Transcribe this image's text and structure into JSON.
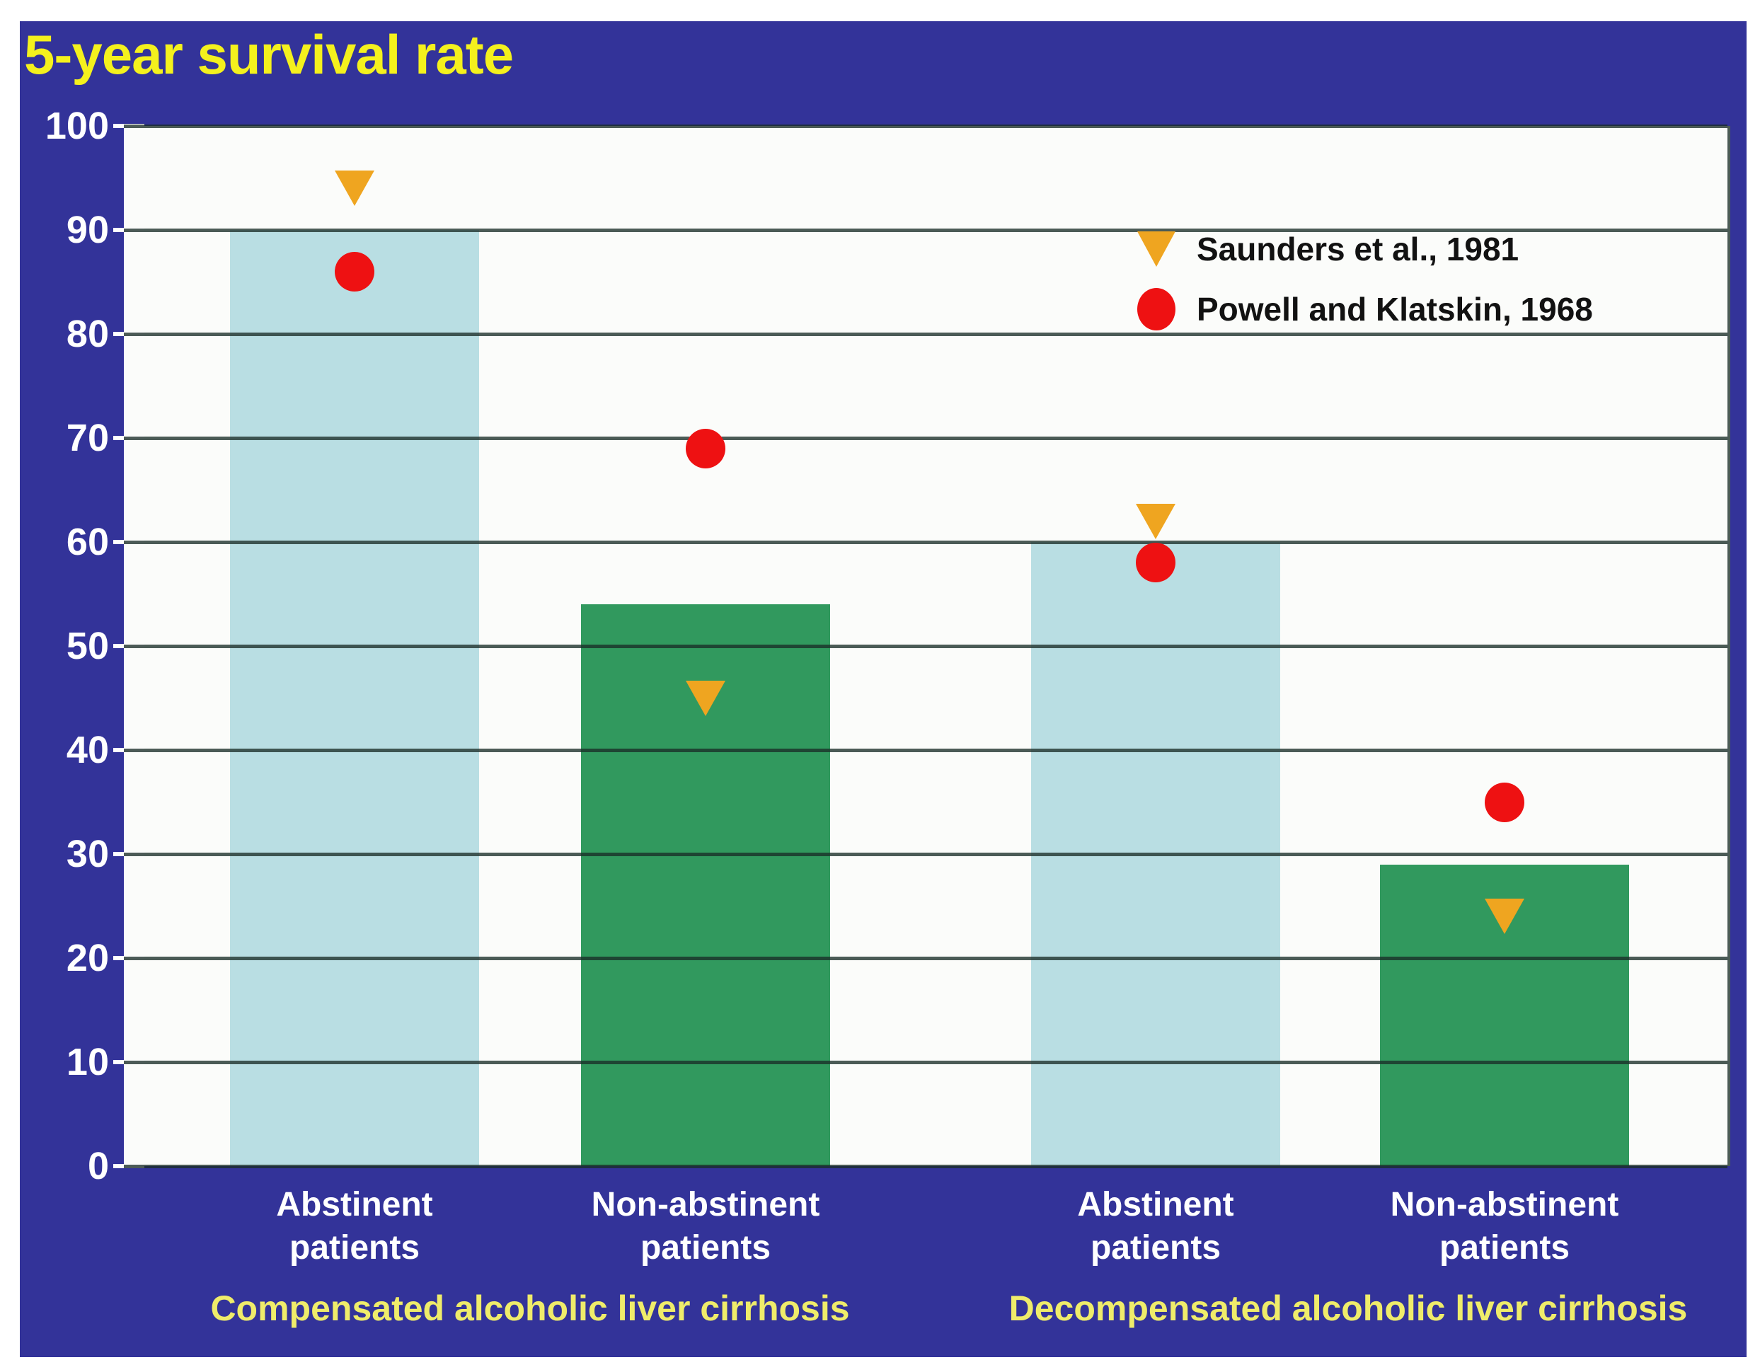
{
  "title": "5-year survival rate",
  "colors": {
    "background": "#333399",
    "plot_bg": "#fbfcfa",
    "bar_abstinent": "#b9dee3",
    "bar_non_abstinent": "#31995e",
    "marker_saunders": "#efa520",
    "marker_powell": "#ee1112",
    "title_text": "#f4f11d",
    "axis_text": "#ffffff",
    "group_text": "#efec6a",
    "legend_text": "#121212"
  },
  "legend": [
    {
      "id": "saunders",
      "marker": "triangle-down-icon",
      "label": "Saunders et al., 1981"
    },
    {
      "id": "powell",
      "marker": "circle-icon",
      "label": "Powell and Klatskin, 1968"
    }
  ],
  "chart_data": {
    "type": "bar",
    "subtype": "bar-with-scatter-overlay",
    "title": "5-year survival rate",
    "ylabel": "",
    "xlabel": "",
    "ylim": [
      0,
      100
    ],
    "yticks": [
      0,
      10,
      20,
      30,
      40,
      50,
      60,
      70,
      80,
      90,
      100
    ],
    "grid": true,
    "legend_position": "upper-right-inside",
    "groups": [
      "Compensated alcoholic liver cirrhosis",
      "Decompensated alcoholic liver cirrhosis"
    ],
    "categories": [
      "Abstinent patients",
      "Non-abstinent patients",
      "Abstinent patients",
      "Non-abstinent patients"
    ],
    "bars": [
      {
        "group": "Compensated alcoholic liver cirrhosis",
        "category": "Abstinent patients",
        "bar_value": 90,
        "saunders_1981": 94,
        "powell_klatskin_1968": 86
      },
      {
        "group": "Compensated alcoholic liver cirrhosis",
        "category": "Non-abstinent patients",
        "bar_value": 54,
        "saunders_1981": 45,
        "powell_klatskin_1968": 69
      },
      {
        "group": "Decompensated alcoholic liver cirrhosis",
        "category": "Abstinent patients",
        "bar_value": 60,
        "saunders_1981": 62,
        "powell_klatskin_1968": 58
      },
      {
        "group": "Decompensated alcoholic liver cirrhosis",
        "category": "Non-abstinent patients",
        "bar_value": 29,
        "saunders_1981": 24,
        "powell_klatskin_1968": 35
      }
    ]
  }
}
